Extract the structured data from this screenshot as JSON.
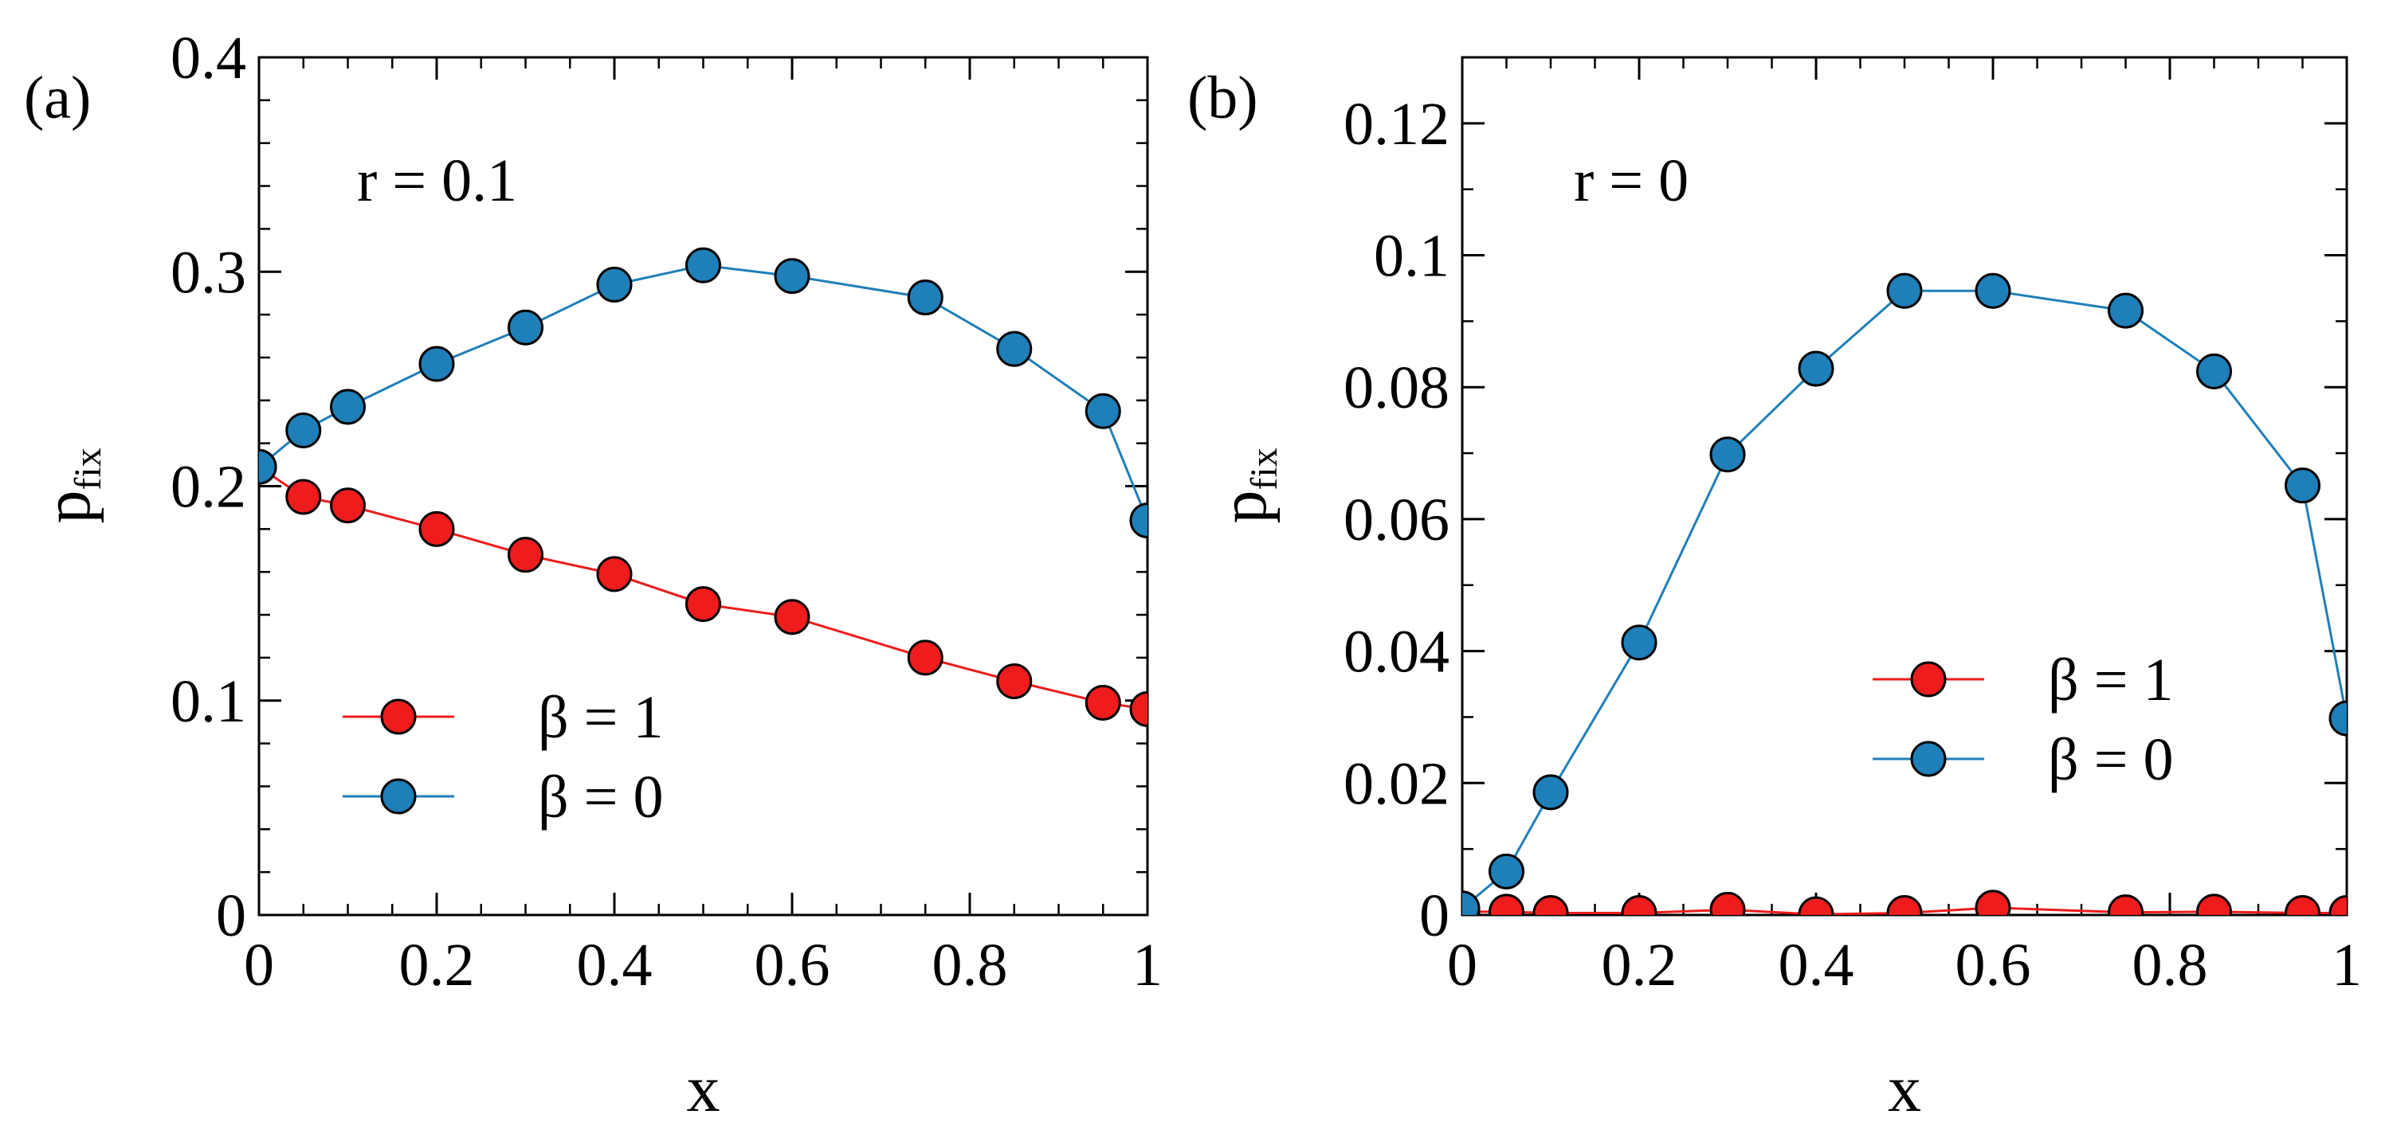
{
  "chart_data": [
    {
      "panel": "(a)",
      "type": "line",
      "annotation": "r = 0.1",
      "xlabel": "x",
      "ylabel_main": "p",
      "ylabel_sub": "fix",
      "xlim": [
        0,
        1
      ],
      "ylim": [
        0,
        0.4
      ],
      "xticks": [
        0,
        0.2,
        0.4,
        0.6,
        0.8,
        1
      ],
      "xtick_labels": [
        "0",
        "0.2",
        "0.4",
        "0.6",
        "0.8",
        "1"
      ],
      "yticks": [
        0,
        0.1,
        0.2,
        0.3,
        0.4
      ],
      "ytick_labels": [
        "0",
        "0.1",
        "0.2",
        "0.3",
        "0.4"
      ],
      "x_minor_step": 0.05,
      "y_minor_step": 0.02,
      "legend_position": "bottom-left",
      "series": [
        {
          "name": "β = 1",
          "color": "#ee1c1c",
          "x": [
            0,
            0.05,
            0.1,
            0.2,
            0.3,
            0.4,
            0.5,
            0.6,
            0.75,
            0.85,
            0.95,
            1.0
          ],
          "y": [
            0.209,
            0.195,
            0.191,
            0.18,
            0.168,
            0.159,
            0.145,
            0.139,
            0.12,
            0.109,
            0.099,
            0.096
          ]
        },
        {
          "name": "β = 0",
          "color": "#1f7fb8",
          "x": [
            0,
            0.05,
            0.1,
            0.2,
            0.3,
            0.4,
            0.5,
            0.6,
            0.75,
            0.85,
            0.95,
            1.0
          ],
          "y": [
            0.209,
            0.226,
            0.237,
            0.257,
            0.274,
            0.294,
            0.303,
            0.298,
            0.288,
            0.264,
            0.235,
            0.184
          ]
        }
      ]
    },
    {
      "panel": "(b)",
      "type": "line",
      "annotation": "r = 0",
      "xlabel": "x",
      "ylabel_main": "p",
      "ylabel_sub": "fix",
      "xlim": [
        0,
        1
      ],
      "ylim": [
        0,
        0.13
      ],
      "xticks": [
        0,
        0.2,
        0.4,
        0.6,
        0.8,
        1
      ],
      "xtick_labels": [
        "0",
        "0.2",
        "0.4",
        "0.6",
        "0.8",
        "1"
      ],
      "yticks": [
        0,
        0.02,
        0.04,
        0.06,
        0.08,
        0.1,
        0.12
      ],
      "ytick_labels": [
        "0",
        "0.02",
        "0.04",
        "0.06",
        "0.08",
        "0.1",
        "0.12"
      ],
      "x_minor_step": 0.05,
      "y_minor_step": 0.01,
      "legend_position": "bottom-right",
      "series": [
        {
          "name": "β = 1",
          "color": "#ee1c1c",
          "x": [
            0,
            0.05,
            0.1,
            0.2,
            0.3,
            0.4,
            0.5,
            0.6,
            0.75,
            0.85,
            0.95,
            1.0
          ],
          "y": [
            0.0005,
            0.0005,
            0.0003,
            0.0003,
            0.0008,
            0.0001,
            0.0003,
            0.0011,
            0.0004,
            0.0005,
            0.0003,
            0.0003
          ]
        },
        {
          "name": "β = 0",
          "color": "#1f7fb8",
          "x": [
            0,
            0.05,
            0.1,
            0.2,
            0.3,
            0.4,
            0.5,
            0.6,
            0.75,
            0.85,
            0.95,
            1.0
          ],
          "y": [
            0.001,
            0.0066,
            0.0186,
            0.0413,
            0.0698,
            0.0828,
            0.0946,
            0.0946,
            0.0916,
            0.0824,
            0.0651,
            0.0298
          ]
        }
      ]
    }
  ]
}
